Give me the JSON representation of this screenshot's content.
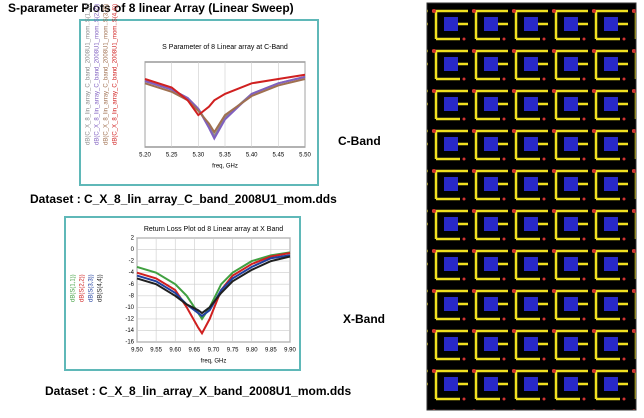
{
  "title": "S-parameter Plots of 8 linear Array (Linear Sweep)",
  "band_labels": [
    "C-Band",
    "X-Band"
  ],
  "datasets": [
    "Dataset : C_X_8_lin_array_C_band_2008U1_mom.dds",
    "Dataset : C_X_8_lin_array_X_band_2008U1_mom.dds"
  ],
  "chart_data": [
    {
      "type": "line",
      "title": "S Parameter of 8 Linear array at C-Band",
      "x_label": "freq, GHz",
      "x": [
        5.2,
        5.25,
        5.28,
        5.3,
        5.32,
        5.33,
        5.35,
        5.4,
        5.45,
        5.5
      ],
      "xlim": [
        5.2,
        5.5
      ],
      "xticks": [
        {
          "value": 5.2,
          "label": "5.20"
        },
        5.25,
        {
          "value": 5.3,
          "label": "5.30"
        },
        5.35,
        {
          "value": 5.4,
          "label": "5.40"
        },
        5.45,
        {
          "value": 5.5,
          "label": "5.50"
        }
      ],
      "ylim": [
        -40,
        0
      ],
      "grid": true,
      "series": [
        {
          "name": "dB(C_X_8_lin_array_C_band_2008U1_mom..S(1,1))",
          "color": "#8a8a8a",
          "values": [
            -9,
            -13,
            -17,
            -22,
            -30,
            -35,
            -26,
            -15,
            -10,
            -7
          ]
        },
        {
          "name": "dB(C_X_8_lin_array_C_band_2008U1_mom..S(2,2))",
          "color": "#8060c0",
          "values": [
            -9,
            -13,
            -17,
            -22,
            -31,
            -36,
            -27,
            -15,
            -10,
            -7
          ]
        },
        {
          "name": "dB(C_X_8_lin_array_C_band_2008U1_mom..S(3,3))",
          "color": "#a07050",
          "values": [
            -10,
            -14,
            -18,
            -23,
            -29,
            -33,
            -25,
            -16,
            -11,
            -8
          ]
        },
        {
          "name": "dB(C_X_8_lin_array_C_band_2008U1_mom..S(4,4))",
          "color": "#d02020",
          "values": [
            -8,
            -12,
            -18,
            -25,
            -21,
            -18,
            -15,
            -10,
            -8,
            -6
          ]
        }
      ]
    },
    {
      "type": "line",
      "title": "Return Loss Plot od 8 Linear array at X Band",
      "x_label": "freq, GHz",
      "x": [
        9.5,
        9.55,
        9.6,
        9.63,
        9.66,
        9.67,
        9.69,
        9.72,
        9.75,
        9.8,
        9.85,
        9.9
      ],
      "xlim": [
        9.5,
        9.9
      ],
      "xticks": [
        {
          "value": 9.5,
          "label": "9.50"
        },
        9.55,
        {
          "value": 9.6,
          "label": "9.60"
        },
        9.65,
        {
          "value": 9.7,
          "label": "9.70"
        },
        9.75,
        {
          "value": 9.8,
          "label": "9.80"
        },
        9.85,
        {
          "value": 9.9,
          "label": "9.90"
        }
      ],
      "ylim": [
        -16,
        2
      ],
      "yticks": [
        2,
        0,
        -2,
        -4,
        -6,
        -8,
        -10,
        -12,
        -14,
        -16
      ],
      "grid": true,
      "series": [
        {
          "name": "dB(S(1,1))",
          "color": "#40a040",
          "values": [
            -3,
            -4,
            -6,
            -8,
            -11,
            -12,
            -10,
            -6,
            -4,
            -2,
            -1,
            -0.5
          ]
        },
        {
          "name": "dB(S(2,2))",
          "color": "#d02020",
          "values": [
            -4,
            -5,
            -7,
            -10,
            -13.5,
            -14.5,
            -12,
            -7,
            -4.5,
            -2.5,
            -1.2,
            -0.6
          ]
        },
        {
          "name": "dB(S(3,3))",
          "color": "#2040a0",
          "values": [
            -4.5,
            -5.5,
            -7.5,
            -9.5,
            -11,
            -11.5,
            -10.5,
            -7,
            -5,
            -3,
            -1.5,
            -1
          ]
        },
        {
          "name": "dB(S(4,4))",
          "color": "#202020",
          "values": [
            -5,
            -6,
            -8,
            -9.5,
            -10.5,
            -11,
            -10,
            -7.5,
            -5.5,
            -3.5,
            -2,
            -1.2
          ]
        }
      ]
    }
  ]
}
